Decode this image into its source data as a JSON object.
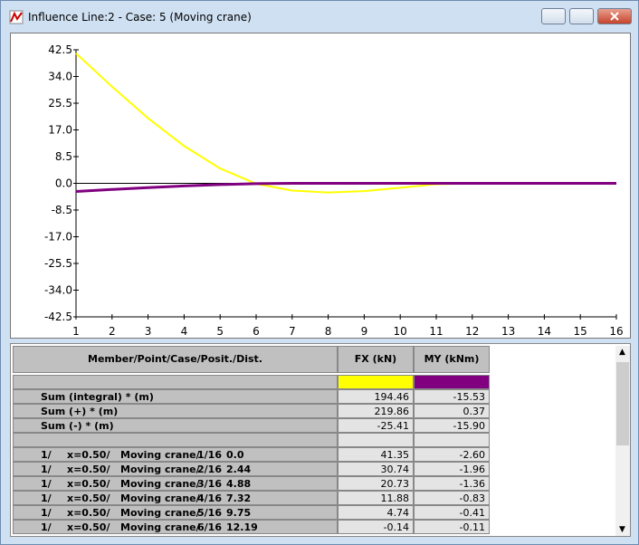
{
  "window": {
    "title": "Influence Line:2 - Case: 5 (Moving crane)"
  },
  "chart_data": {
    "type": "line",
    "x": [
      1,
      2,
      3,
      4,
      5,
      6,
      7,
      8,
      9,
      10,
      11,
      12,
      13,
      14,
      15,
      16
    ],
    "xlim": [
      1,
      16
    ],
    "xticks": [
      1,
      2,
      3,
      4,
      5,
      6,
      7,
      8,
      9,
      10,
      11,
      12,
      13,
      14,
      15,
      16
    ],
    "ylim": [
      -42.5,
      42.5
    ],
    "yticks": [
      42.5,
      {
        "value": 34,
        "label": "34.0"
      },
      25.5,
      {
        "value": 17,
        "label": "17.0"
      },
      8.5,
      {
        "value": 0,
        "label": "0.0"
      },
      -8.5,
      {
        "value": -17,
        "label": "-17.0"
      },
      -25.5,
      {
        "value": -34,
        "label": "-34.0"
      },
      -42.5
    ],
    "series": [
      {
        "name": "FX (kN)",
        "color": "#ffff00",
        "values": [
          41.35,
          30.74,
          20.73,
          11.88,
          4.74,
          -0.14,
          -2.3,
          -2.9,
          -2.5,
          -1.4,
          -0.3,
          0,
          0,
          0,
          0,
          0
        ]
      },
      {
        "name": "MY (kNm)",
        "color": "#800080",
        "values": [
          -2.6,
          -1.96,
          -1.36,
          -0.83,
          -0.41,
          -0.11,
          0,
          0,
          0,
          0,
          0,
          0,
          0,
          0,
          0,
          0
        ]
      }
    ]
  },
  "table": {
    "header": "Member/Point/Case/Posit./Dist.",
    "sums": [
      [
        "Sum (integral) * (m)",
        "194.46",
        "-15.53"
      ],
      [
        "Sum (+) * (m)",
        "219.86",
        "0.37"
      ],
      [
        "Sum (-) * (m)",
        "-25.41",
        "-15.90"
      ]
    ],
    "rows": [
      [
        "1/",
        "x=0.50/",
        "Moving crane/",
        "1/16",
        "0.0",
        "41.35",
        "-2.60"
      ],
      [
        "1/",
        "x=0.50/",
        "Moving crane/",
        "2/16",
        "2.44",
        "30.74",
        "-1.96"
      ],
      [
        "1/",
        "x=0.50/",
        "Moving crane/",
        "3/16",
        "4.88",
        "20.73",
        "-1.36"
      ],
      [
        "1/",
        "x=0.50/",
        "Moving crane/",
        "4/16",
        "7.32",
        "11.88",
        "-0.83"
      ],
      [
        "1/",
        "x=0.50/",
        "Moving crane/",
        "5/16",
        "9.75",
        "4.74",
        "-0.41"
      ],
      [
        "1/",
        "x=0.50/",
        "Moving crane/",
        "6/16",
        "12.19",
        "-0.14",
        "-0.11"
      ]
    ]
  }
}
